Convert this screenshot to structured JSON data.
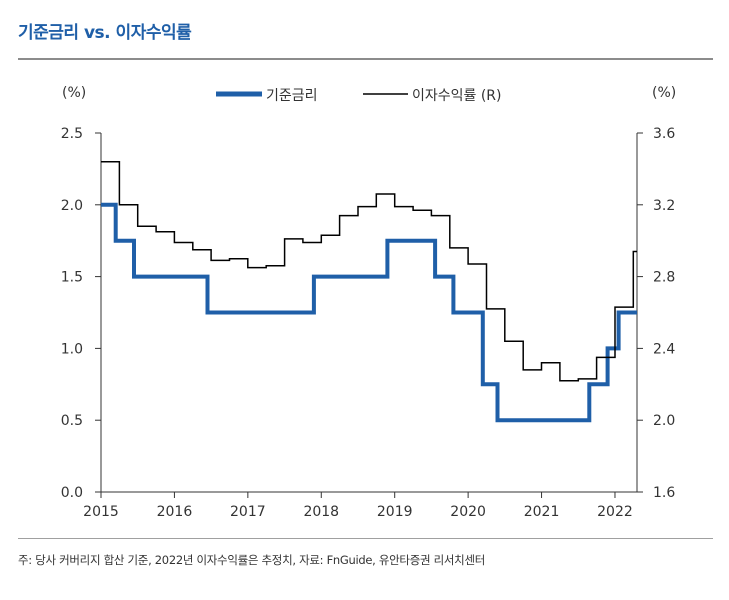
{
  "title": "기준금리 vs. 이자수익률",
  "source": "주: 당사 커버리지 합산 기준, 2022년 이자수익률은 추정치, 자료: FnGuide, 유안타증권 리서치센터",
  "colors": {
    "title": "#1F5FA8",
    "base_rate": "#1F5FA8",
    "yield": "#000000"
  },
  "chart_data": {
    "type": "line",
    "legend_position": "top-center",
    "grid": false,
    "y_left": {
      "unit": "(%)",
      "range": [
        0.0,
        2.5
      ],
      "ticks": [
        "0.0",
        "0.5",
        "1.0",
        "1.5",
        "2.0",
        "2.5"
      ]
    },
    "y_right": {
      "unit": "(%)",
      "label": "(R)",
      "range": [
        1.6,
        3.6
      ],
      "ticks": [
        "1.6",
        "2.0",
        "2.4",
        "2.8",
        "3.2",
        "3.6"
      ]
    },
    "x_axis": {
      "range": [
        2015.0,
        2022.3
      ],
      "ticks": [
        "2015",
        "2016",
        "2017",
        "2018",
        "2019",
        "2020",
        "2021",
        "2022"
      ]
    },
    "series": [
      {
        "name": "기준금리",
        "axis": "left",
        "step": true,
        "points": [
          [
            2015.0,
            2.0
          ],
          [
            2015.2,
            1.75
          ],
          [
            2015.45,
            1.5
          ],
          [
            2016.45,
            1.25
          ],
          [
            2017.9,
            1.5
          ],
          [
            2018.9,
            1.75
          ],
          [
            2019.55,
            1.5
          ],
          [
            2019.8,
            1.25
          ],
          [
            2020.2,
            0.75
          ],
          [
            2020.4,
            0.5
          ],
          [
            2021.65,
            0.75
          ],
          [
            2021.9,
            1.0
          ],
          [
            2022.05,
            1.25
          ],
          [
            2022.3,
            1.25
          ]
        ]
      },
      {
        "name": "이자수익률",
        "axis": "right",
        "step": true,
        "points": [
          [
            2015.0,
            3.44
          ],
          [
            2015.25,
            3.2
          ],
          [
            2015.5,
            3.08
          ],
          [
            2015.75,
            3.05
          ],
          [
            2016.0,
            2.99
          ],
          [
            2016.25,
            2.95
          ],
          [
            2016.5,
            2.89
          ],
          [
            2016.75,
            2.9
          ],
          [
            2017.0,
            2.85
          ],
          [
            2017.25,
            2.86
          ],
          [
            2017.5,
            3.01
          ],
          [
            2017.75,
            2.99
          ],
          [
            2018.0,
            3.03
          ],
          [
            2018.25,
            3.14
          ],
          [
            2018.5,
            3.19
          ],
          [
            2018.75,
            3.26
          ],
          [
            2019.0,
            3.19
          ],
          [
            2019.25,
            3.17
          ],
          [
            2019.5,
            3.14
          ],
          [
            2019.75,
            2.96
          ],
          [
            2020.0,
            2.87
          ],
          [
            2020.25,
            2.62
          ],
          [
            2020.5,
            2.44
          ],
          [
            2020.75,
            2.28
          ],
          [
            2021.0,
            2.32
          ],
          [
            2021.25,
            2.22
          ],
          [
            2021.5,
            2.23
          ],
          [
            2021.75,
            2.35
          ],
          [
            2022.0,
            2.63
          ],
          [
            2022.25,
            2.94
          ],
          [
            2022.3,
            2.94
          ]
        ]
      }
    ]
  }
}
